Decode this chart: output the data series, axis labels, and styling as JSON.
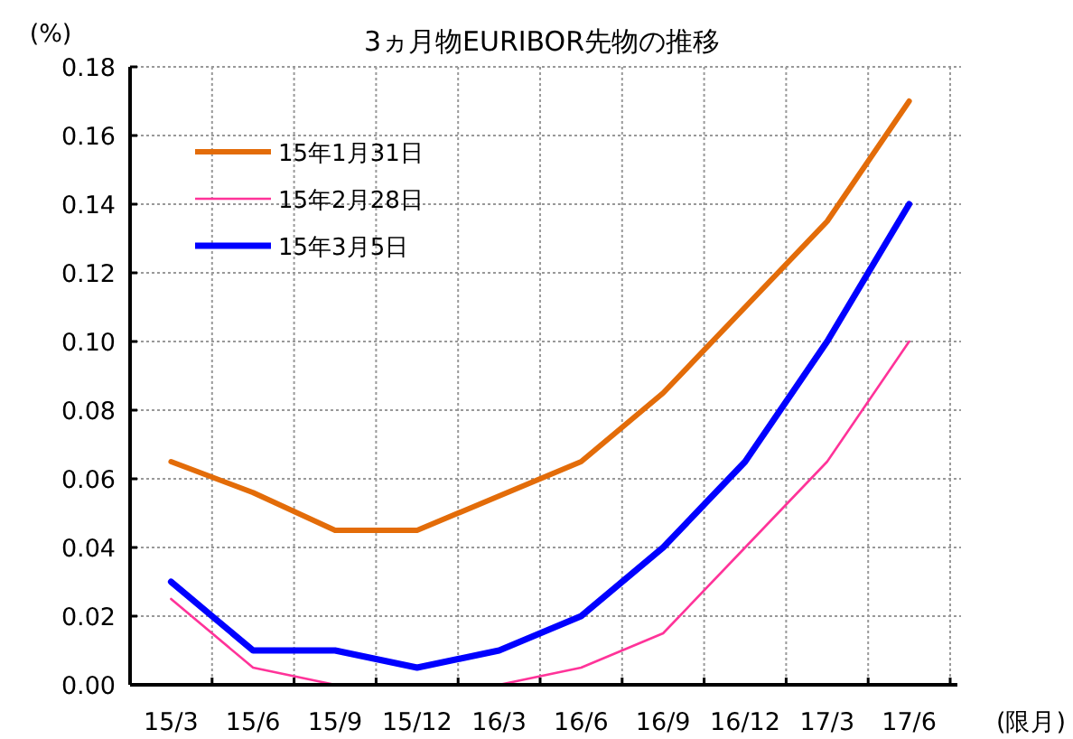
{
  "chart_data": {
    "type": "line",
    "title": "3ヵ月物EURIBOR先物の推移",
    "ylabel": "(%)",
    "xlabel": "(限月)",
    "categories": [
      "15/3",
      "15/6",
      "15/9",
      "15/12",
      "16/3",
      "16/6",
      "16/9",
      "16/12",
      "17/3",
      "17/6"
    ],
    "series": [
      {
        "name": "15年1月31日",
        "color": "#e36c09",
        "values": [
          0.065,
          0.056,
          0.045,
          0.045,
          0.055,
          0.065,
          0.085,
          0.11,
          0.135,
          0.17
        ]
      },
      {
        "name": "15年2月28日",
        "color": "#ff3399",
        "values": [
          0.025,
          0.005,
          0,
          0,
          0,
          0.005,
          0.015,
          0.04,
          0.065,
          0.1
        ]
      },
      {
        "name": "15年3月5日",
        "color": "#0000ff",
        "values": [
          0.03,
          0.01,
          0.01,
          0.005,
          0.01,
          0.02,
          0.04,
          0.065,
          0.1,
          0.14
        ]
      }
    ],
    "ylim": [
      0,
      0.18
    ],
    "yticks": [
      {
        "value": 0,
        "label": "0.00"
      },
      {
        "value": 0.02,
        "label": "0.02"
      },
      {
        "value": 0.04,
        "label": "0.04"
      },
      {
        "value": 0.06,
        "label": "0.06"
      },
      {
        "value": 0.08,
        "label": "0.08"
      },
      {
        "value": 0.1,
        "label": "0.10"
      },
      {
        "value": 0.12,
        "label": "0.12"
      },
      {
        "value": 0.14,
        "label": "0.14"
      },
      {
        "value": 0.16,
        "label": "0.16"
      },
      {
        "value": 0.18,
        "label": "0.18"
      }
    ],
    "grid": true,
    "legend": "top left",
    "marker": "none",
    "line_style": "solid"
  }
}
